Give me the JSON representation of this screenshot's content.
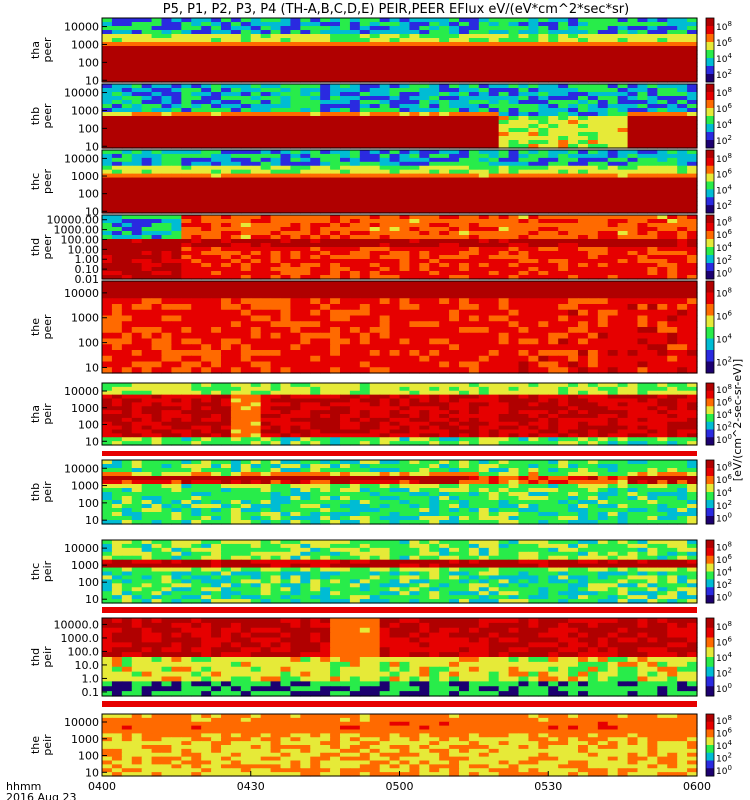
{
  "chart_data": {
    "type": "heatmap",
    "title": "P5, P1, P2, P3, P4 (TH-A,B,C,D,E) PEIR,PEER EFlux eV/(eV*cm^2*sec*sr)",
    "x_axis": {
      "ticks": [
        "0400",
        "0430",
        "0500",
        "0530",
        "0600"
      ],
      "range": [
        "0400",
        "0600"
      ],
      "label_line1": "hhmm",
      "label_line2": "2016 Aug 23"
    },
    "colorbar_label": "[eV/(cm^2-sec-sr-eV)]",
    "colormap": [
      "#1c0070",
      "#2a2ae0",
      "#00bcd4",
      "#28ec4a",
      "#e6ea38",
      "#ff6a00",
      "#e60000",
      "#b00000"
    ],
    "panels": [
      {
        "probe": "tha",
        "instrument": "peer",
        "ylabel": "tha peer",
        "y_ticks": [
          "10",
          "100",
          "1000",
          "10000"
        ],
        "y_range": [
          8,
          30000
        ],
        "colorbar_ticks": [
          "10^2",
          "10^4",
          "10^6",
          "10^8"
        ],
        "pattern": "peer_stable"
      },
      {
        "probe": "thb",
        "instrument": "peer",
        "ylabel": "thb peer",
        "y_ticks": [
          "10",
          "100",
          "1000",
          "10000"
        ],
        "y_range": [
          8,
          30000
        ],
        "colorbar_ticks": [
          "10^2",
          "10^4",
          "10^6",
          "10^8"
        ],
        "pattern": "peer_gap"
      },
      {
        "probe": "thc",
        "instrument": "peer",
        "ylabel": "thc peer",
        "y_ticks": [
          "10",
          "100",
          "1000",
          "10000"
        ],
        "y_range": [
          8,
          30000
        ],
        "colorbar_ticks": [
          "10^2",
          "10^4",
          "10^6",
          "10^8"
        ],
        "pattern": "peer_stable"
      },
      {
        "probe": "thd",
        "instrument": "peer",
        "ylabel": "thd peer",
        "y_ticks": [
          "0.01",
          "0.10",
          "1.00",
          "10.00",
          "100.00",
          "1000.00",
          "10000.00"
        ],
        "y_range": [
          0.01,
          30000
        ],
        "colorbar_ticks": [
          "10^0",
          "10^2",
          "10^4",
          "10^6",
          "10^8"
        ],
        "pattern": "peer_thd"
      },
      {
        "probe": "the",
        "instrument": "peer",
        "ylabel": "the peer",
        "y_ticks": [
          "10",
          "100",
          "1000",
          "10000"
        ],
        "y_range": [
          6,
          30000
        ],
        "colorbar_ticks": [
          "10^2",
          "10^4",
          "10^6",
          "10^8"
        ],
        "pattern": "peer_hot"
      },
      {
        "probe": "tha",
        "instrument": "peir",
        "ylabel": "tha peir",
        "y_ticks": [
          "10",
          "100",
          "1000",
          "10000"
        ],
        "y_range": [
          6,
          30000
        ],
        "colorbar_ticks": [
          "10^0",
          "10^2",
          "10^4",
          "10^6",
          "10^8"
        ],
        "pattern": "peir_hot"
      },
      {
        "probe": "thb",
        "instrument": "peir",
        "ylabel": "thb peir",
        "y_ticks": [
          "10",
          "100",
          "1000",
          "10000"
        ],
        "y_range": [
          6,
          30000
        ],
        "colorbar_ticks": [
          "10^0",
          "10^2",
          "10^4",
          "10^6",
          "10^8"
        ],
        "pattern": "peir_band_gap"
      },
      {
        "probe": "thc",
        "instrument": "peir",
        "ylabel": "thc peir",
        "y_ticks": [
          "10",
          "100",
          "1000",
          "10000"
        ],
        "y_range": [
          6,
          30000
        ],
        "colorbar_ticks": [
          "10^0",
          "10^2",
          "10^4",
          "10^6",
          "10^8"
        ],
        "pattern": "peir_band"
      },
      {
        "probe": "thd",
        "instrument": "peir",
        "ylabel": "thd peir",
        "y_ticks": [
          "0.1",
          "1.0",
          "10.0",
          "100.0",
          "1000.0",
          "10000.0"
        ],
        "y_range": [
          0.05,
          30000
        ],
        "colorbar_ticks": [
          "10^0",
          "10^2",
          "10^4",
          "10^6",
          "10^8"
        ],
        "pattern": "peir_thd"
      },
      {
        "probe": "the",
        "instrument": "peir",
        "ylabel": "the peir",
        "y_ticks": [
          "10",
          "100",
          "1000",
          "10000"
        ],
        "y_range": [
          6,
          30000
        ],
        "colorbar_ticks": [
          "10^0",
          "10^2",
          "10^4",
          "10^6",
          "10^8"
        ],
        "pattern": "peir_warm"
      }
    ]
  }
}
